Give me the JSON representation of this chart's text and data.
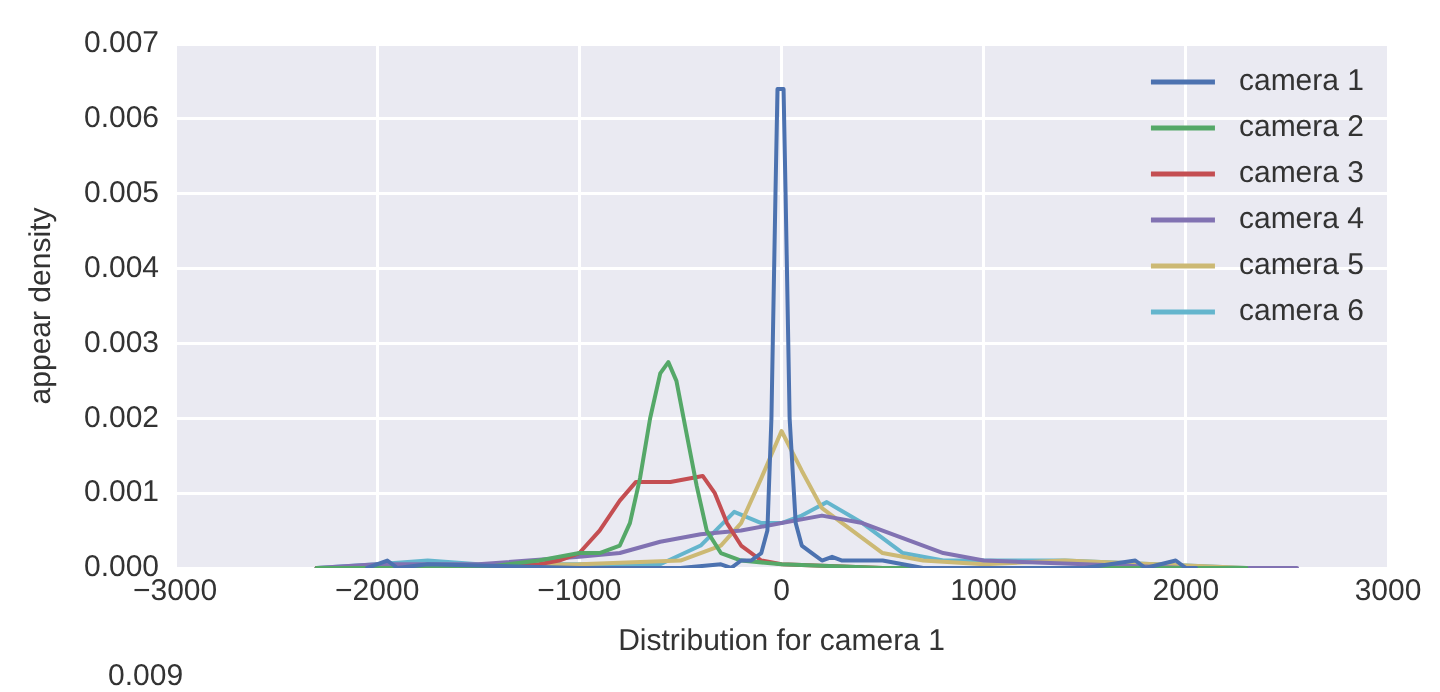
{
  "chart_data": {
    "type": "line",
    "xlabel": "Distribution for camera 1",
    "ylabel": "appear density",
    "xlim": [
      -3000,
      3000
    ],
    "xticks": [
      -3000,
      -2000,
      -1000,
      0,
      1000,
      2000,
      3000
    ],
    "ylim": [
      0,
      0.007
    ],
    "yticks": [
      {
        "value": 0,
        "label": "0.000"
      },
      {
        "value": 0.001,
        "label": "0.001"
      },
      {
        "value": 0.002,
        "label": "0.002"
      },
      {
        "value": 0.003,
        "label": "0.003"
      },
      {
        "value": 0.004,
        "label": "0.004"
      },
      {
        "value": 0.005,
        "label": "0.005"
      },
      {
        "value": 0.006,
        "label": "0.006"
      },
      {
        "value": 0.007,
        "label": "0.007"
      }
    ],
    "grid": true,
    "legend": "top right",
    "marker": "none",
    "line_style": "solid",
    "annotations": [
      "0.009"
    ],
    "series": [
      {
        "name": "camera 1",
        "color": "#4c72b0",
        "x": [
          -2050,
          -1950,
          -1900,
          -1750,
          -1000,
          -500,
          -300,
          -250,
          -200,
          -150,
          -100,
          -70,
          -50,
          -30,
          -20,
          10,
          20,
          40,
          70,
          100,
          150,
          200,
          250,
          300,
          400,
          500,
          700,
          1500,
          1750,
          1800,
          1950,
          2000,
          2050
        ],
        "values": [
          0,
          0.0001,
          0,
          5e-05,
          0,
          0,
          5e-05,
          0,
          0.0001,
          0.0001,
          0.0002,
          0.0005,
          0.002,
          0.005,
          0.0064,
          0.0064,
          0.005,
          0.002,
          0.0006,
          0.0003,
          0.0002,
          0.0001,
          0.00015,
          0.0001,
          0.0001,
          0.0001,
          0,
          0,
          0.0001,
          0,
          0.0001,
          0,
          0
        ]
      },
      {
        "name": "camera 2",
        "color": "#55a868",
        "x": [
          -2300,
          -1500,
          -1200,
          -1000,
          -900,
          -800,
          -750,
          -700,
          -650,
          -600,
          -560,
          -520,
          -470,
          -420,
          -370,
          -300,
          -200,
          0,
          500,
          1500,
          2300
        ],
        "values": [
          0,
          0,
          0.0001,
          0.0002,
          0.0002,
          0.0003,
          0.0006,
          0.0012,
          0.002,
          0.0026,
          0.00275,
          0.0025,
          0.0018,
          0.0011,
          0.0005,
          0.0002,
          0.0001,
          5e-05,
          0,
          0,
          0
        ]
      },
      {
        "name": "camera 3",
        "color": "#c44e52",
        "x": [
          -2300,
          -1500,
          -1200,
          -1100,
          -1000,
          -900,
          -800,
          -720,
          -650,
          -550,
          -450,
          -390,
          -330,
          -270,
          -200,
          -100,
          0,
          500
        ],
        "values": [
          0,
          0,
          5e-05,
          0.0001,
          0.0002,
          0.0005,
          0.0009,
          0.00115,
          0.00115,
          0.00115,
          0.0012,
          0.00123,
          0.001,
          0.0006,
          0.0003,
          0.0001,
          5e-05,
          0
        ]
      },
      {
        "name": "camera 4",
        "color": "#8172b2",
        "x": [
          -2300,
          -2000,
          -1500,
          -1000,
          -800,
          -600,
          -400,
          -200,
          0,
          200,
          400,
          600,
          800,
          1000,
          1500,
          2000,
          2550
        ],
        "values": [
          0,
          5e-05,
          5e-05,
          0.00015,
          0.0002,
          0.00035,
          0.00045,
          0.0005,
          0.0006,
          0.0007,
          0.0006,
          0.0004,
          0.0002,
          0.0001,
          5e-05,
          0,
          0
        ]
      },
      {
        "name": "camera 5",
        "color": "#ccb974",
        "x": [
          -2300,
          -1000,
          -500,
          -300,
          -200,
          -100,
          0,
          100,
          200,
          300,
          400,
          500,
          700,
          1000,
          1400,
          2300
        ],
        "values": [
          0,
          5e-05,
          0.0001,
          0.0003,
          0.0006,
          0.0012,
          0.00183,
          0.0013,
          0.0008,
          0.0006,
          0.0004,
          0.0002,
          0.0001,
          5e-05,
          0.0001,
          0
        ]
      },
      {
        "name": "camera 6",
        "color": "#64b5cd",
        "x": [
          -2300,
          -2000,
          -1750,
          -1500,
          -1000,
          -600,
          -400,
          -234,
          -100,
          0,
          100,
          224,
          400,
          600,
          800,
          1400,
          2300
        ],
        "values": [
          0,
          5e-05,
          0.0001,
          5e-05,
          5e-05,
          5e-05,
          0.0003,
          0.00075,
          0.0006,
          0.0006,
          0.0007,
          0.00088,
          0.0006,
          0.0002,
          0.0001,
          0.0001,
          0
        ]
      }
    ]
  }
}
